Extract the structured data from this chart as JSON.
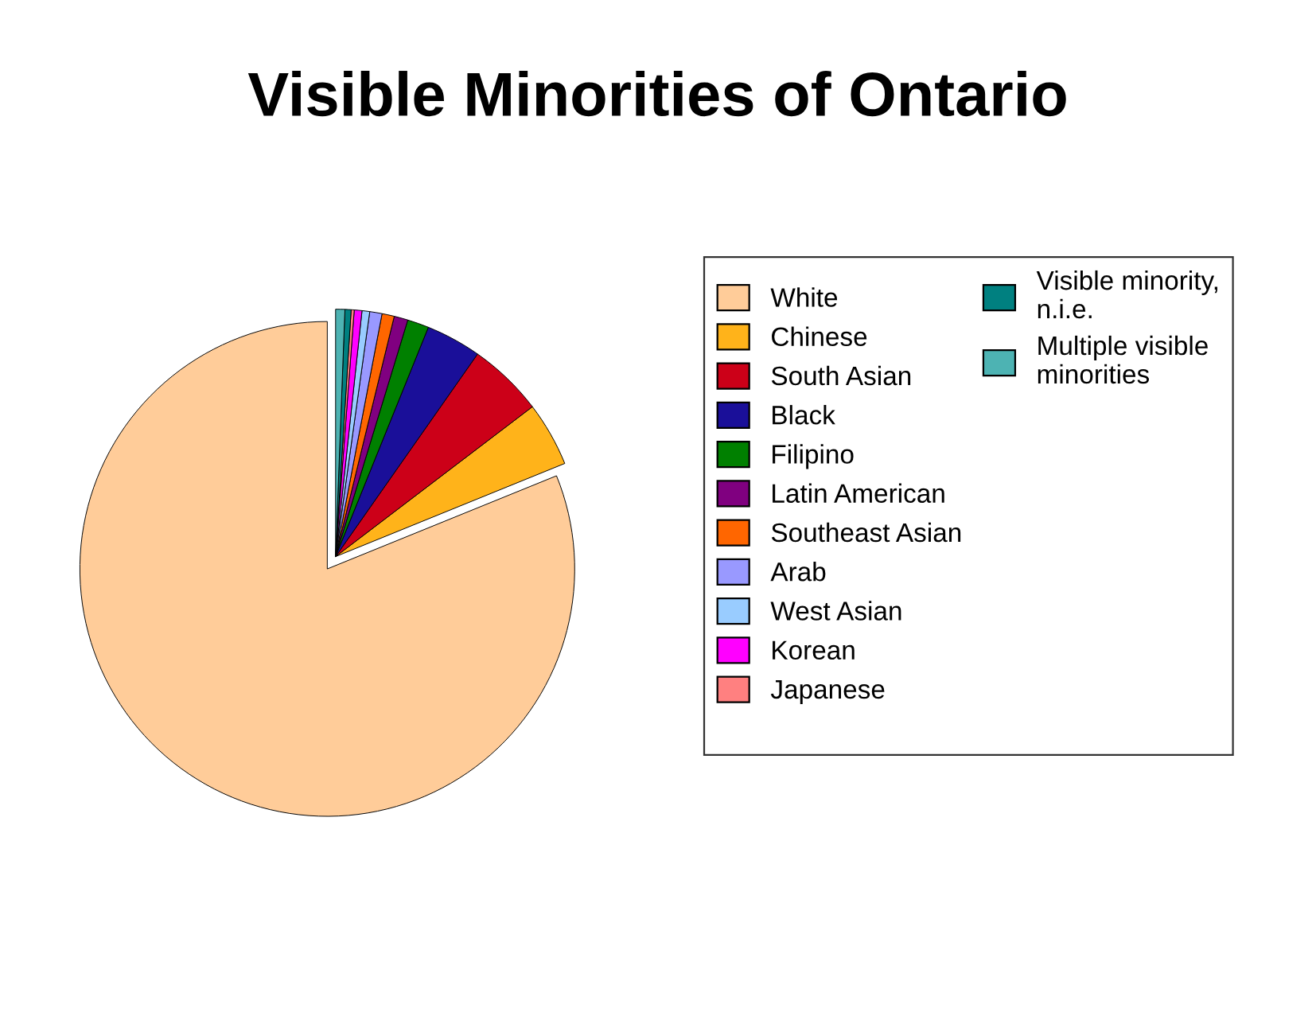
{
  "chart_data": {
    "type": "pie",
    "title": "Visible Minorities of Ontario",
    "categories": [
      "White",
      "Chinese",
      "South Asian",
      "Black",
      "Filipino",
      "Latin American",
      "Southeast Asian",
      "Arab",
      "West Asian",
      "Korean",
      "Japanese",
      "Visible minority, n.i.e.",
      "Multiple visible minorities"
    ],
    "values": [
      80.9,
      4.2,
      4.9,
      3.6,
      1.4,
      0.9,
      0.8,
      0.8,
      0.5,
      0.5,
      0.2,
      0.4,
      0.6
    ],
    "colors": [
      "#ffcc99",
      "#ffb31a",
      "#cc0018",
      "#1a0f99",
      "#008000",
      "#800080",
      "#ff6600",
      "#9999ff",
      "#99ccff",
      "#ff00ff",
      "#ff8080",
      "#008080",
      "#4db3b3"
    ],
    "legend": "right"
  }
}
